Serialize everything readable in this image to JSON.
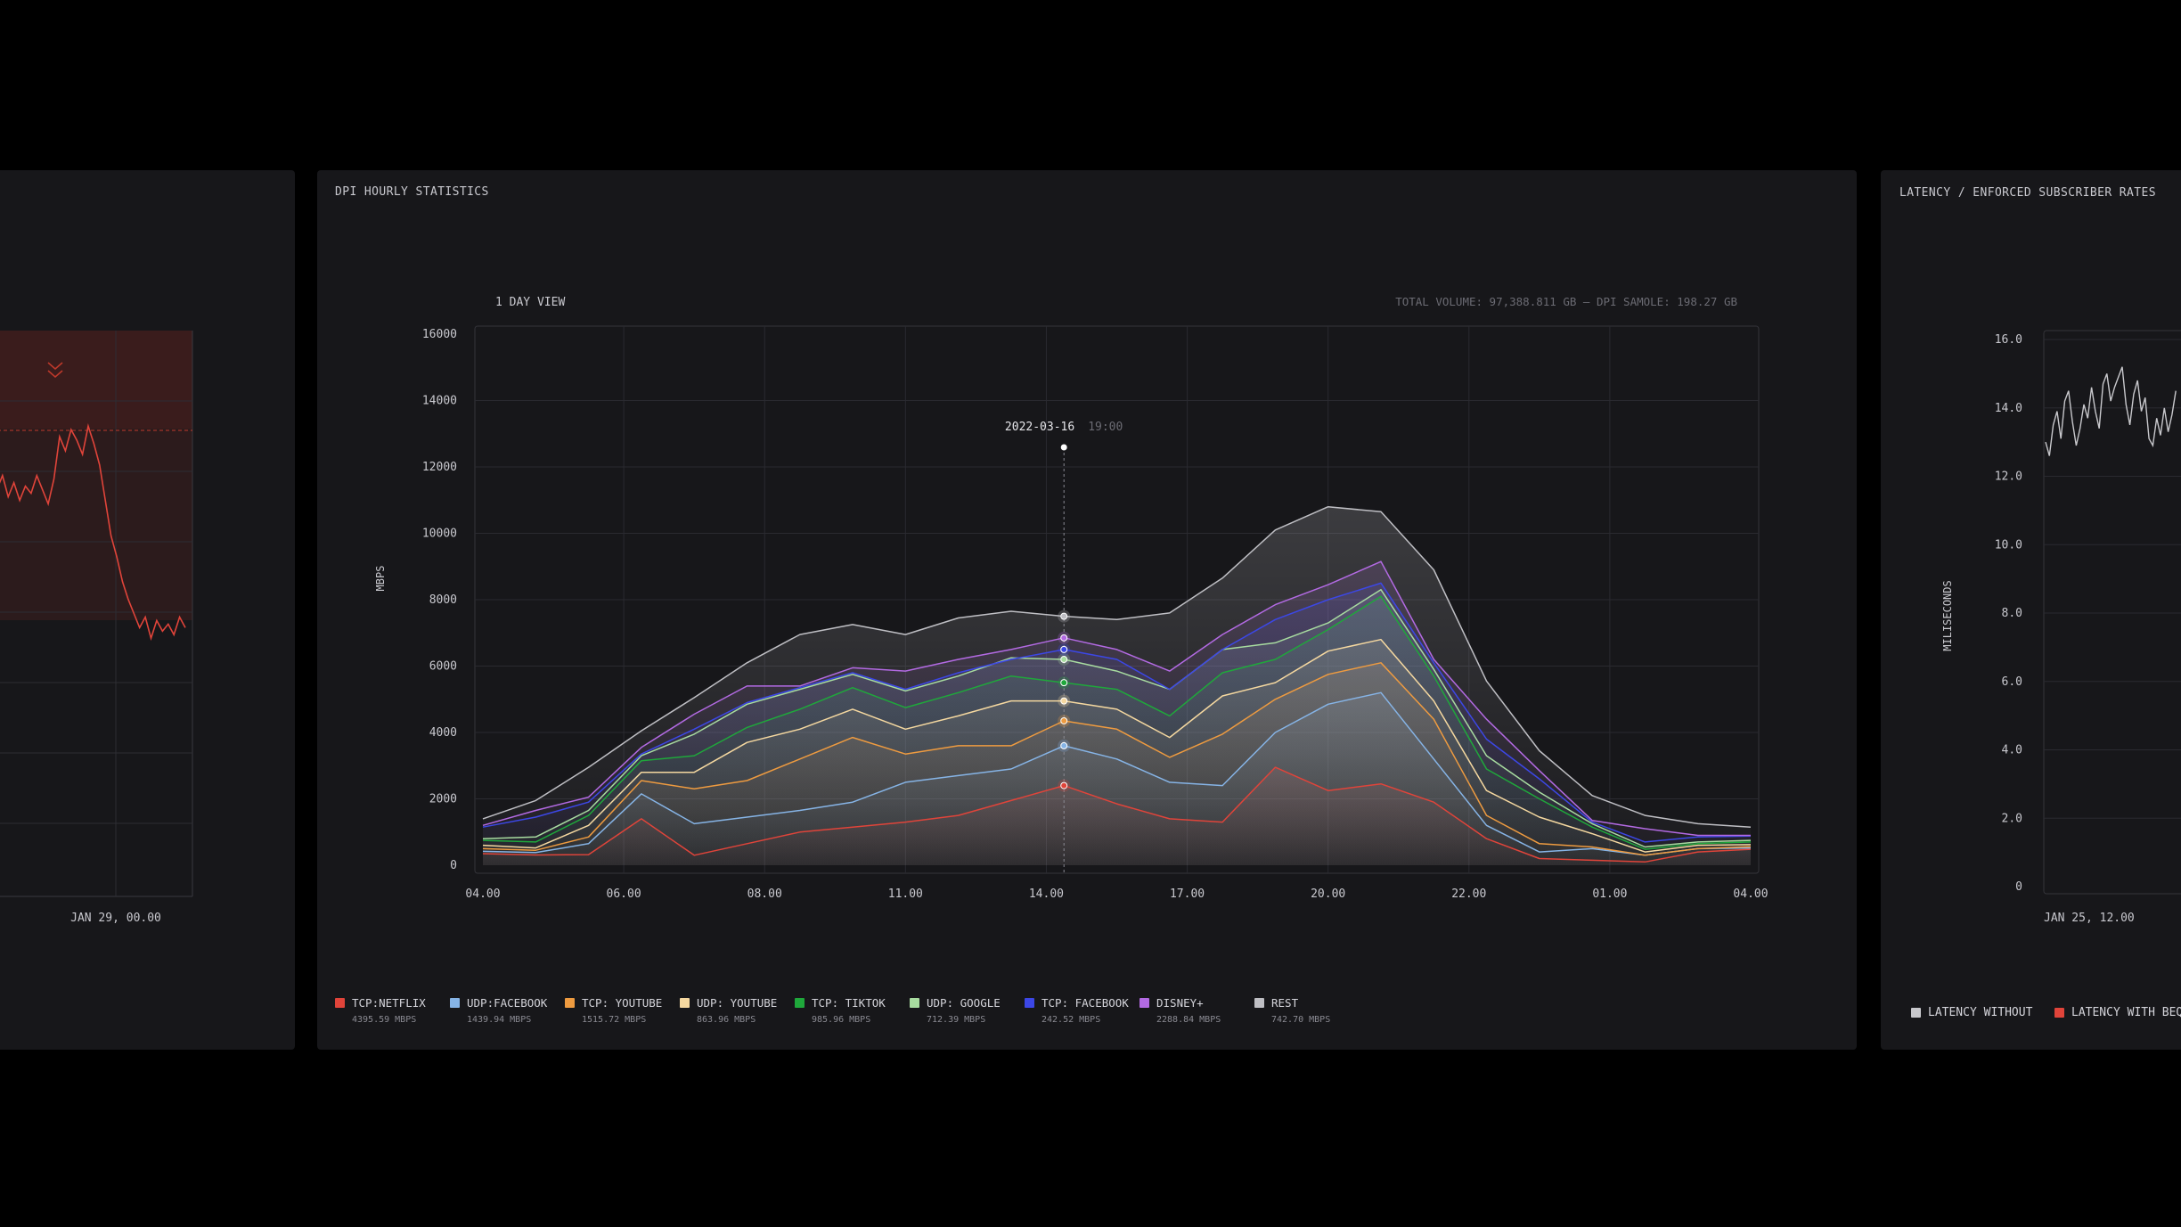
{
  "left_panel": {
    "x_tick": "JAN 29, 00.00",
    "series_values": [
      11.8,
      11.5,
      11.9,
      11.3,
      11.7,
      11.2,
      11.6,
      11.4,
      11.9,
      11.5,
      11.1,
      11.8,
      13.0,
      12.6,
      13.2,
      12.9,
      12.5,
      13.3,
      12.8,
      12.2,
      11.2,
      10.2,
      9.6,
      8.9,
      8.4,
      8.0,
      7.6,
      7.9,
      7.3,
      7.8,
      7.5,
      7.7,
      7.4,
      7.9,
      7.6
    ],
    "line_color": "#e0443a"
  },
  "main_panel": {
    "title": "DPI HOURLY STATISTICS",
    "view_label": "1 DAY VIEW",
    "total_volume": "TOTAL VOLUME: 97,388.811 GB – DPI SAMOLE: 198.27 GB",
    "tooltip": {
      "date": "2022-03-16",
      "time": "19:00",
      "x_index": 11
    }
  },
  "chart_data": {
    "type": "area",
    "ylabel": "MBPS",
    "ylim": [
      0,
      16000
    ],
    "y_ticks": [
      "16000",
      "14000",
      "12000",
      "10000",
      "8000",
      "6000",
      "4000",
      "2000",
      "0"
    ],
    "x_ticks": [
      "04.00",
      "06.00",
      "08.00",
      "11.00",
      "14.00",
      "17.00",
      "20.00",
      "22.00",
      "01.00",
      "04.00"
    ],
    "x_tick_positions": [
      0,
      2,
      4,
      6,
      8,
      10,
      12,
      14,
      16,
      18
    ],
    "series": [
      {
        "name": "TCP:NETFLIX",
        "value": "4395.59 MBPS",
        "color": "#e0443a",
        "values": [
          350,
          310,
          320,
          1400,
          300,
          650,
          1000,
          1150,
          1300,
          1500,
          1950,
          2400,
          1850,
          1400,
          1300,
          2950,
          2250,
          2450,
          1900,
          800,
          200,
          150,
          100,
          400,
          480
        ]
      },
      {
        "name": "UDP:FACEBOOK",
        "value": "1439.94 MBPS",
        "color": "#86b4e6",
        "values": [
          420,
          380,
          650,
          2150,
          1250,
          1450,
          1650,
          1900,
          2500,
          2700,
          2900,
          3600,
          3200,
          2500,
          2400,
          4000,
          4850,
          5200,
          3200,
          1200,
          400,
          500,
          300,
          500,
          520
        ]
      },
      {
        "name": "TCP: YOUTUBE",
        "value": "1515.72 MBPS",
        "color": "#ee9b40",
        "values": [
          500,
          450,
          850,
          2550,
          2300,
          2550,
          3200,
          3850,
          3350,
          3600,
          3600,
          4350,
          4100,
          3250,
          3950,
          5000,
          5750,
          6100,
          4400,
          1500,
          650,
          550,
          300,
          500,
          560
        ]
      },
      {
        "name": "UDP: YOUTUBE",
        "value": "863.96 MBPS",
        "color": "#f5d8a0",
        "values": [
          600,
          520,
          1200,
          2800,
          2800,
          3700,
          4100,
          4700,
          4100,
          4500,
          4950,
          4950,
          4700,
          3850,
          5100,
          5500,
          6450,
          6800,
          4950,
          2250,
          1450,
          950,
          400,
          600,
          620
        ]
      },
      {
        "name": "TCP: TIKTOK",
        "value": "985.96 MBPS",
        "color": "#1fa83b",
        "values": [
          750,
          700,
          1500,
          3150,
          3300,
          4150,
          4700,
          5350,
          4750,
          5200,
          5700,
          5500,
          5300,
          4500,
          5800,
          6200,
          7100,
          8100,
          5700,
          2900,
          2000,
          1150,
          480,
          650,
          700
        ]
      },
      {
        "name": "UDP: GOOGLE",
        "value": "712.39 MBPS",
        "color": "#a8dca0",
        "values": [
          800,
          850,
          1650,
          3300,
          3950,
          4850,
          5300,
          5750,
          5250,
          5700,
          6250,
          6200,
          5850,
          5300,
          6500,
          6700,
          7300,
          8300,
          5900,
          3300,
          2200,
          1250,
          550,
          700,
          750
        ]
      },
      {
        "name": "TCP: FACEBOOK",
        "value": "242.52 MBPS",
        "color": "#3c47e6",
        "values": [
          1150,
          1450,
          1900,
          3350,
          4100,
          4900,
          5350,
          5800,
          5300,
          5800,
          6200,
          6500,
          6200,
          5300,
          6500,
          7400,
          8000,
          8500,
          6100,
          3800,
          2600,
          1300,
          700,
          850,
          880
        ]
      },
      {
        "name": "DISNEY+",
        "value": "2288.84 MBPS",
        "color": "#b36ae3",
        "values": [
          1200,
          1650,
          2050,
          3550,
          4550,
          5400,
          5400,
          5950,
          5850,
          6200,
          6500,
          6850,
          6500,
          5850,
          6950,
          7850,
          8450,
          9150,
          6200,
          4400,
          2850,
          1350,
          1100,
          900,
          900
        ]
      },
      {
        "name": "REST",
        "value": "742.70 MBPS",
        "color": "#bfbfc4",
        "values": [
          1400,
          1950,
          2950,
          4050,
          5050,
          6100,
          6950,
          7250,
          6950,
          7450,
          7650,
          7500,
          7400,
          7600,
          8650,
          10100,
          10800,
          10650,
          8900,
          5550,
          3450,
          2100,
          1500,
          1250,
          1150
        ]
      }
    ]
  },
  "right_panel": {
    "title": "LATENCY / ENFORCED SUBSCRIBER RATES",
    "ylabel": "MILISECONDS",
    "y_ticks": [
      "16.0",
      "14.0",
      "12.0",
      "10.0",
      "8.0",
      "6.0",
      "4.0",
      "2.0",
      "0"
    ],
    "ylim": [
      0,
      16
    ],
    "x_tick": "JAN 25, 12.00",
    "legend": [
      {
        "label": "LATENCY WITHOUT",
        "color": "#c8c8cc"
      },
      {
        "label": "LATENCY WITH BEQ",
        "color": "#e0443a"
      }
    ],
    "series_values": [
      13.0,
      12.6,
      13.5,
      13.9,
      13.1,
      14.2,
      14.5,
      13.6,
      12.9,
      13.4,
      14.1,
      13.7,
      14.6,
      13.9,
      13.4,
      14.7,
      15.0,
      14.2,
      14.6,
      14.9,
      15.2,
      14.1,
      13.5,
      14.4,
      14.8,
      13.9,
      14.3,
      13.1,
      12.9,
      13.7,
      13.2,
      14.0,
      13.3,
      13.8,
      14.5
    ]
  }
}
